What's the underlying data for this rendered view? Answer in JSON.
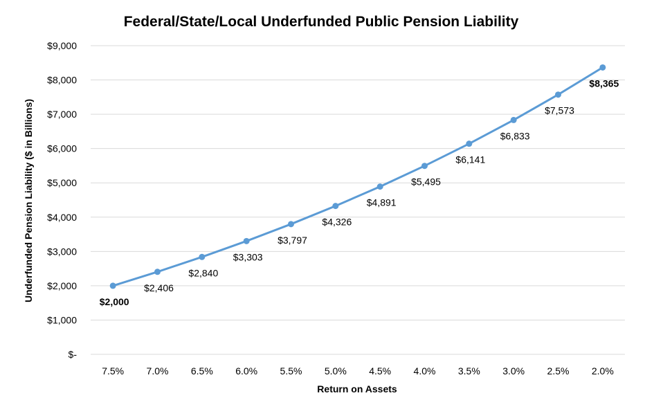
{
  "chart_data": {
    "type": "line",
    "title": "Federal/State/Local Underfunded Public Pension Liability",
    "xlabel": "Return on Assets",
    "ylabel": "Underfunded Pension Liability ($ in Billions)",
    "categories": [
      "7.5%",
      "7.0%",
      "6.5%",
      "6.0%",
      "5.5%",
      "5.0%",
      "4.5%",
      "4.0%",
      "3.5%",
      "3.0%",
      "2.5%",
      "2.0%"
    ],
    "series": [
      {
        "values": [
          2000,
          2406,
          2840,
          3303,
          3797,
          4326,
          4891,
          5495,
          6141,
          6833,
          7573,
          8365
        ],
        "data_labels": [
          "$2,000",
          "$2,406",
          "$2,840",
          "$3,303",
          "$3,797",
          "$4,326",
          "$4,891",
          "$5,495",
          "$6,141",
          "$6,833",
          "$7,573",
          "$8,365"
        ],
        "bold_labels": [
          true,
          false,
          false,
          false,
          false,
          false,
          false,
          false,
          false,
          false,
          false,
          true
        ],
        "color": "#5b9bd5"
      }
    ],
    "ylim": [
      0,
      9000
    ],
    "yticks": [
      0,
      1000,
      2000,
      3000,
      4000,
      5000,
      6000,
      7000,
      8000,
      9000
    ],
    "ytick_labels": [
      "$-",
      "$1,000",
      "$2,000",
      "$3,000",
      "$4,000",
      "$5,000",
      "$6,000",
      "$7,000",
      "$8,000",
      "$9,000"
    ],
    "grid": true,
    "legend": "none"
  }
}
